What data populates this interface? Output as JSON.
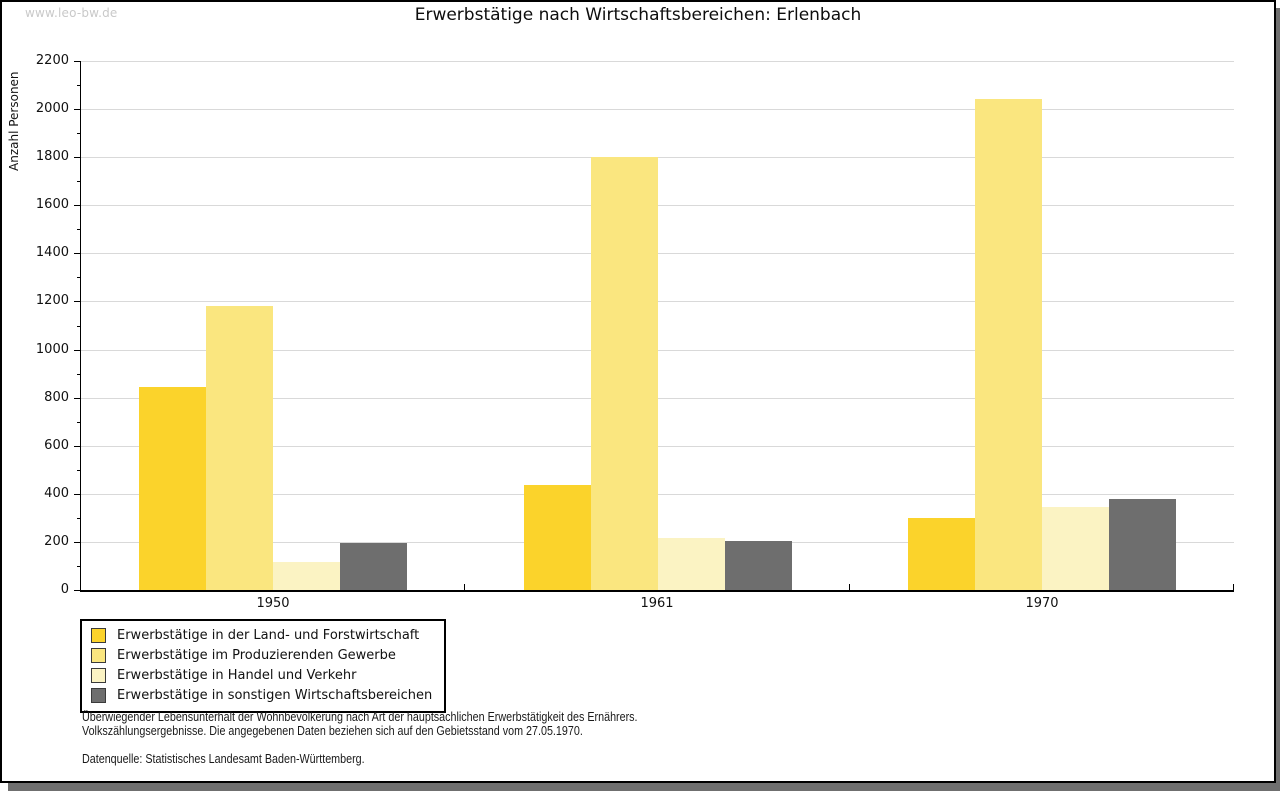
{
  "watermark": "www.leo-bw.de",
  "chart_data": {
    "type": "bar",
    "title": "Erwerbstätige nach Wirtschaftsbereichen: Erlenbach",
    "xlabel": "",
    "ylabel": "Anzahl Personen",
    "categories": [
      "1950",
      "1961",
      "1970"
    ],
    "series": [
      {
        "name": "Erwerbstätige in der Land- und Forstwirtschaft",
        "color": "#FBD32B",
        "values": [
          845,
          435,
          300
        ]
      },
      {
        "name": "Erwerbstätige im Produzierenden Gewerbe",
        "color": "#FAE67F",
        "values": [
          1180,
          1800,
          2040
        ]
      },
      {
        "name": "Erwerbstätige in Handel und Verkehr",
        "color": "#FBF3C3",
        "values": [
          115,
          215,
          345
        ]
      },
      {
        "name": "Erwerbstätige in sonstigen Wirtschaftsbereichen",
        "color": "#6E6E6E",
        "values": [
          195,
          205,
          380
        ]
      }
    ],
    "ylim": [
      0,
      2200
    ],
    "ytick_step": 200,
    "ytick_minor_step": 100,
    "grid": true,
    "legend_position": "bottom-left",
    "grid_color": "#D9D9D9"
  },
  "footnotes": {
    "line1": "Überwiegender Lebensunterhalt der Wohnbevölkerung nach Art der hauptsächlichen Erwerbstätigkeit des Ernährers.",
    "line2": "Volkszählungsergebnisse. Die angegebenen Daten beziehen sich auf den Gebietsstand vom 27.05.1970.",
    "source": "Datenquelle: Statistisches Landesamt Baden-Württemberg."
  }
}
